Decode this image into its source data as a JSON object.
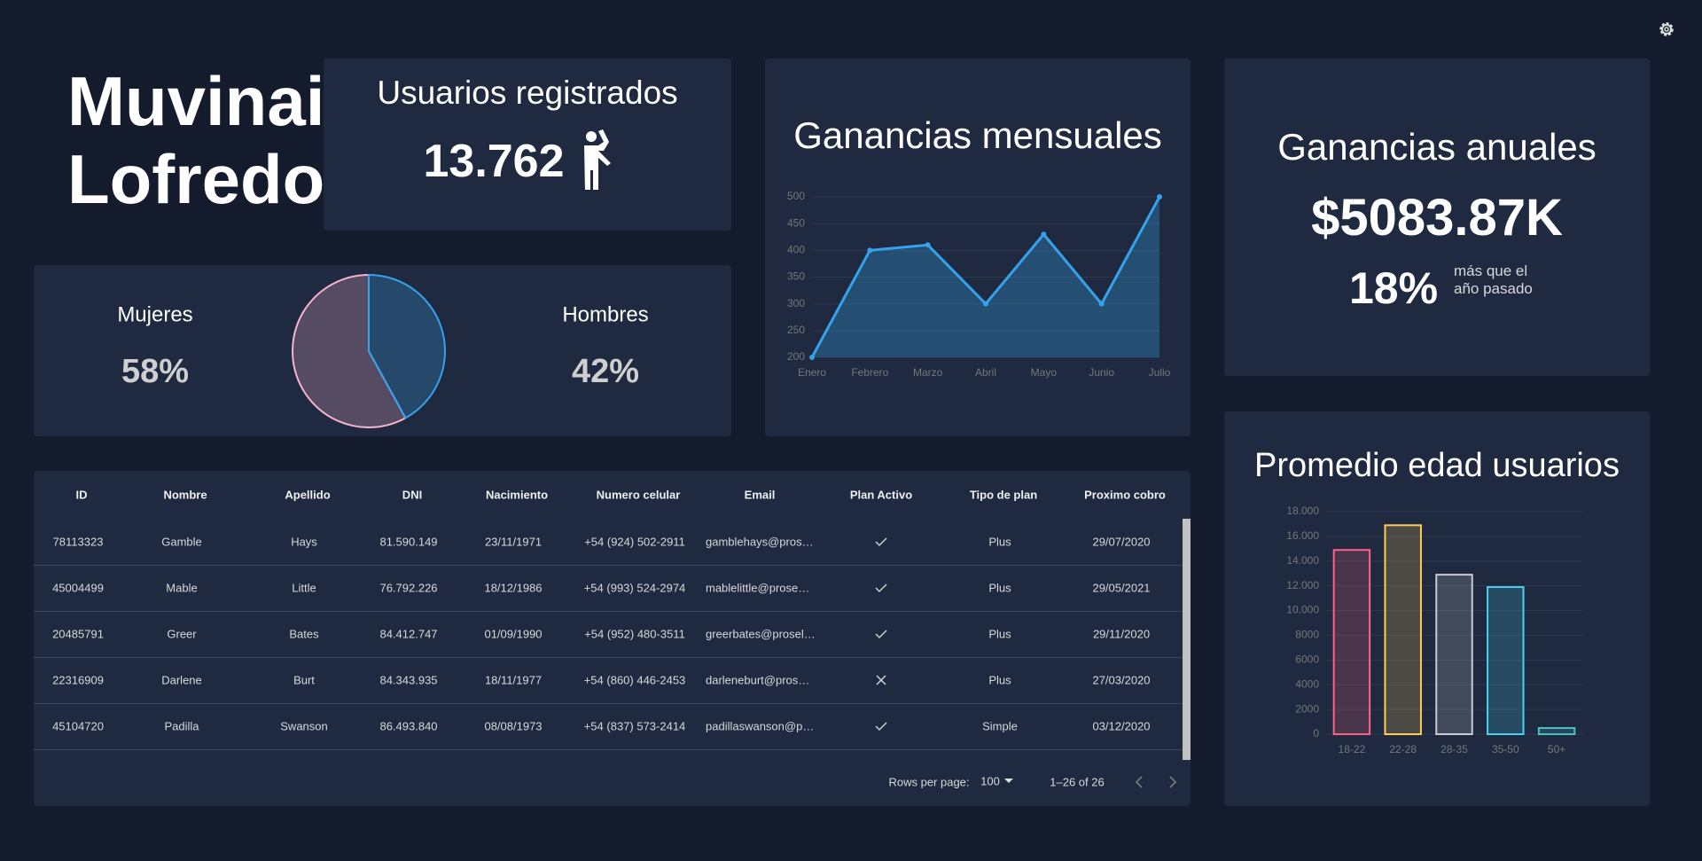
{
  "profile": {
    "name_lines": [
      "Muvinai",
      "Lofredo"
    ]
  },
  "users": {
    "title": "Usuarios registrados",
    "count": "13.762"
  },
  "annual": {
    "title": "Ganancias anuales",
    "amount": "$5083.87K",
    "growth": "18%",
    "growth_note": [
      "más que el",
      "año pasado"
    ]
  },
  "chart_data": [
    {
      "type": "pie",
      "categories": [
        "Mujeres",
        "Hombres"
      ],
      "values": [
        58,
        42
      ],
      "value_labels": [
        "58%",
        "42%"
      ],
      "colors": [
        "#f7b3d0",
        "#36a2eb"
      ]
    },
    {
      "type": "line",
      "title": "Ganancias mensuales",
      "categories": [
        "Enero",
        "Febrero",
        "Marzo",
        "Abril",
        "Mayo",
        "Junio",
        "Julio"
      ],
      "values": [
        200,
        400,
        410,
        300,
        430,
        300,
        500
      ],
      "color": "#36a2eb",
      "ylim": [
        200,
        500
      ],
      "yticks": [
        200,
        250,
        300,
        350,
        400,
        450,
        500
      ],
      "grid": true
    },
    {
      "type": "bar",
      "title": "Promedio edad usuarios",
      "categories": [
        "18-22",
        "22-28",
        "28-35",
        "35-50",
        "50+"
      ],
      "values": [
        14900,
        16900,
        12900,
        11900,
        500
      ],
      "colors": [
        "#ff6384",
        "#ffcd56",
        "#c9cbcf",
        "#4dd0f0",
        "#4bc0c0"
      ],
      "ylim": [
        0,
        18000
      ],
      "yticks": [
        0,
        2000,
        4000,
        6000,
        8000,
        {
          "value": 10000,
          "label": "10.000"
        },
        {
          "value": 12000,
          "label": "12.000"
        },
        {
          "value": 14000,
          "label": "14.000"
        },
        {
          "value": 16000,
          "label": "16.000"
        },
        {
          "value": 18000,
          "label": "18.000"
        }
      ],
      "grid": true
    }
  ],
  "table": {
    "headers": [
      "ID",
      "Nombre",
      "Apellido",
      "DNI",
      "Nacimiento",
      "Numero celular",
      "Email",
      "Plan Activo",
      "Tipo de plan",
      "Proximo cobro"
    ],
    "rows": [
      [
        "78113323",
        "Gamble",
        "Hays",
        "81.590.149",
        "23/11/1971",
        "+54 (924) 502-2911",
        "gamblehays@pros…",
        true,
        "Plus",
        "29/07/2020"
      ],
      [
        "45004499",
        "Mable",
        "Little",
        "76.792.226",
        "18/12/1986",
        "+54 (993) 524-2974",
        "mablelittle@prose…",
        true,
        "Plus",
        "29/05/2021"
      ],
      [
        "20485791",
        "Greer",
        "Bates",
        "84.412.747",
        "01/09/1990",
        "+54 (952) 480-3511",
        "greerbates@prosel…",
        true,
        "Plus",
        "29/11/2020"
      ],
      [
        "22316909",
        "Darlene",
        "Burt",
        "84.343.935",
        "18/11/1977",
        "+54 (860) 446-2453",
        "darleneburt@pros…",
        false,
        "Plus",
        "27/03/2020"
      ],
      [
        "45104720",
        "Padilla",
        "Swanson",
        "86.493.840",
        "08/08/1973",
        "+54 (837) 573-2414",
        "padillaswanson@p…",
        true,
        "Simple",
        "03/12/2020"
      ]
    ],
    "rows_per_page_label": "Rows per page:",
    "rows_per_page": "100",
    "range": "1–26 of 26"
  }
}
